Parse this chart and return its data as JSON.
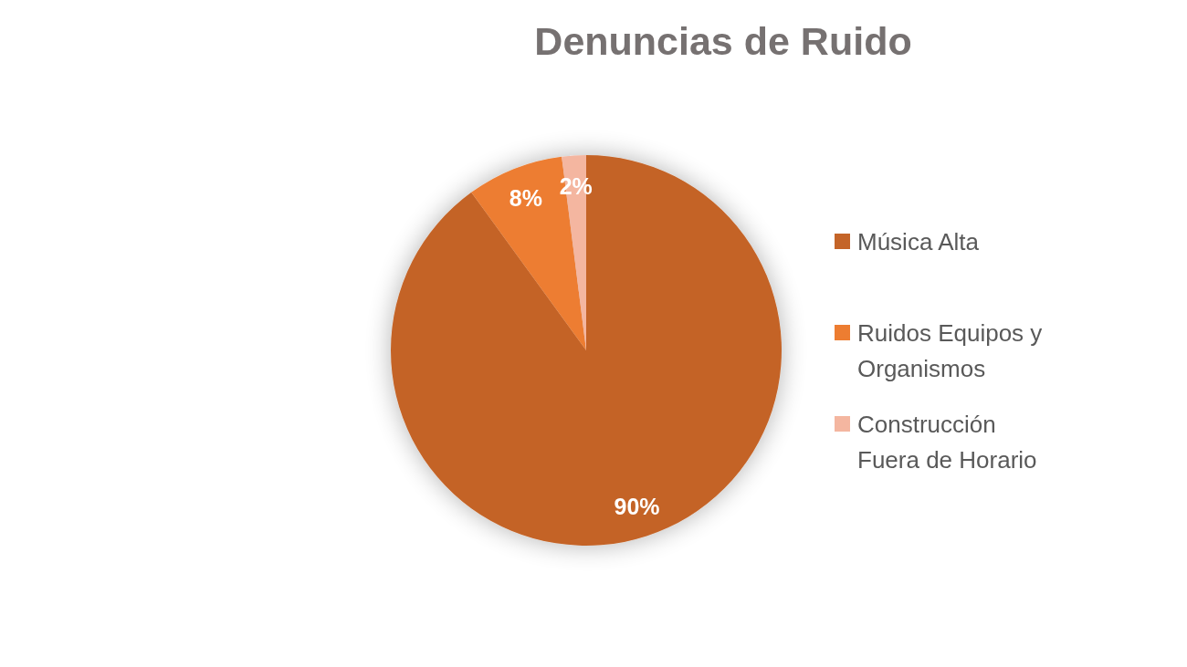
{
  "chart_data": {
    "type": "pie",
    "title": "Denuncias de Ruido",
    "categories": [
      "Música Alta",
      "Ruidos Equipos y Organismos",
      "Construcción Fuera de Horario"
    ],
    "values": [
      90,
      8,
      2
    ],
    "colors": [
      "#c46428",
      "#ed7d31",
      "#f4b6a0"
    ],
    "value_labels": [
      "90%",
      "8%",
      "2%"
    ],
    "legend": "right"
  }
}
